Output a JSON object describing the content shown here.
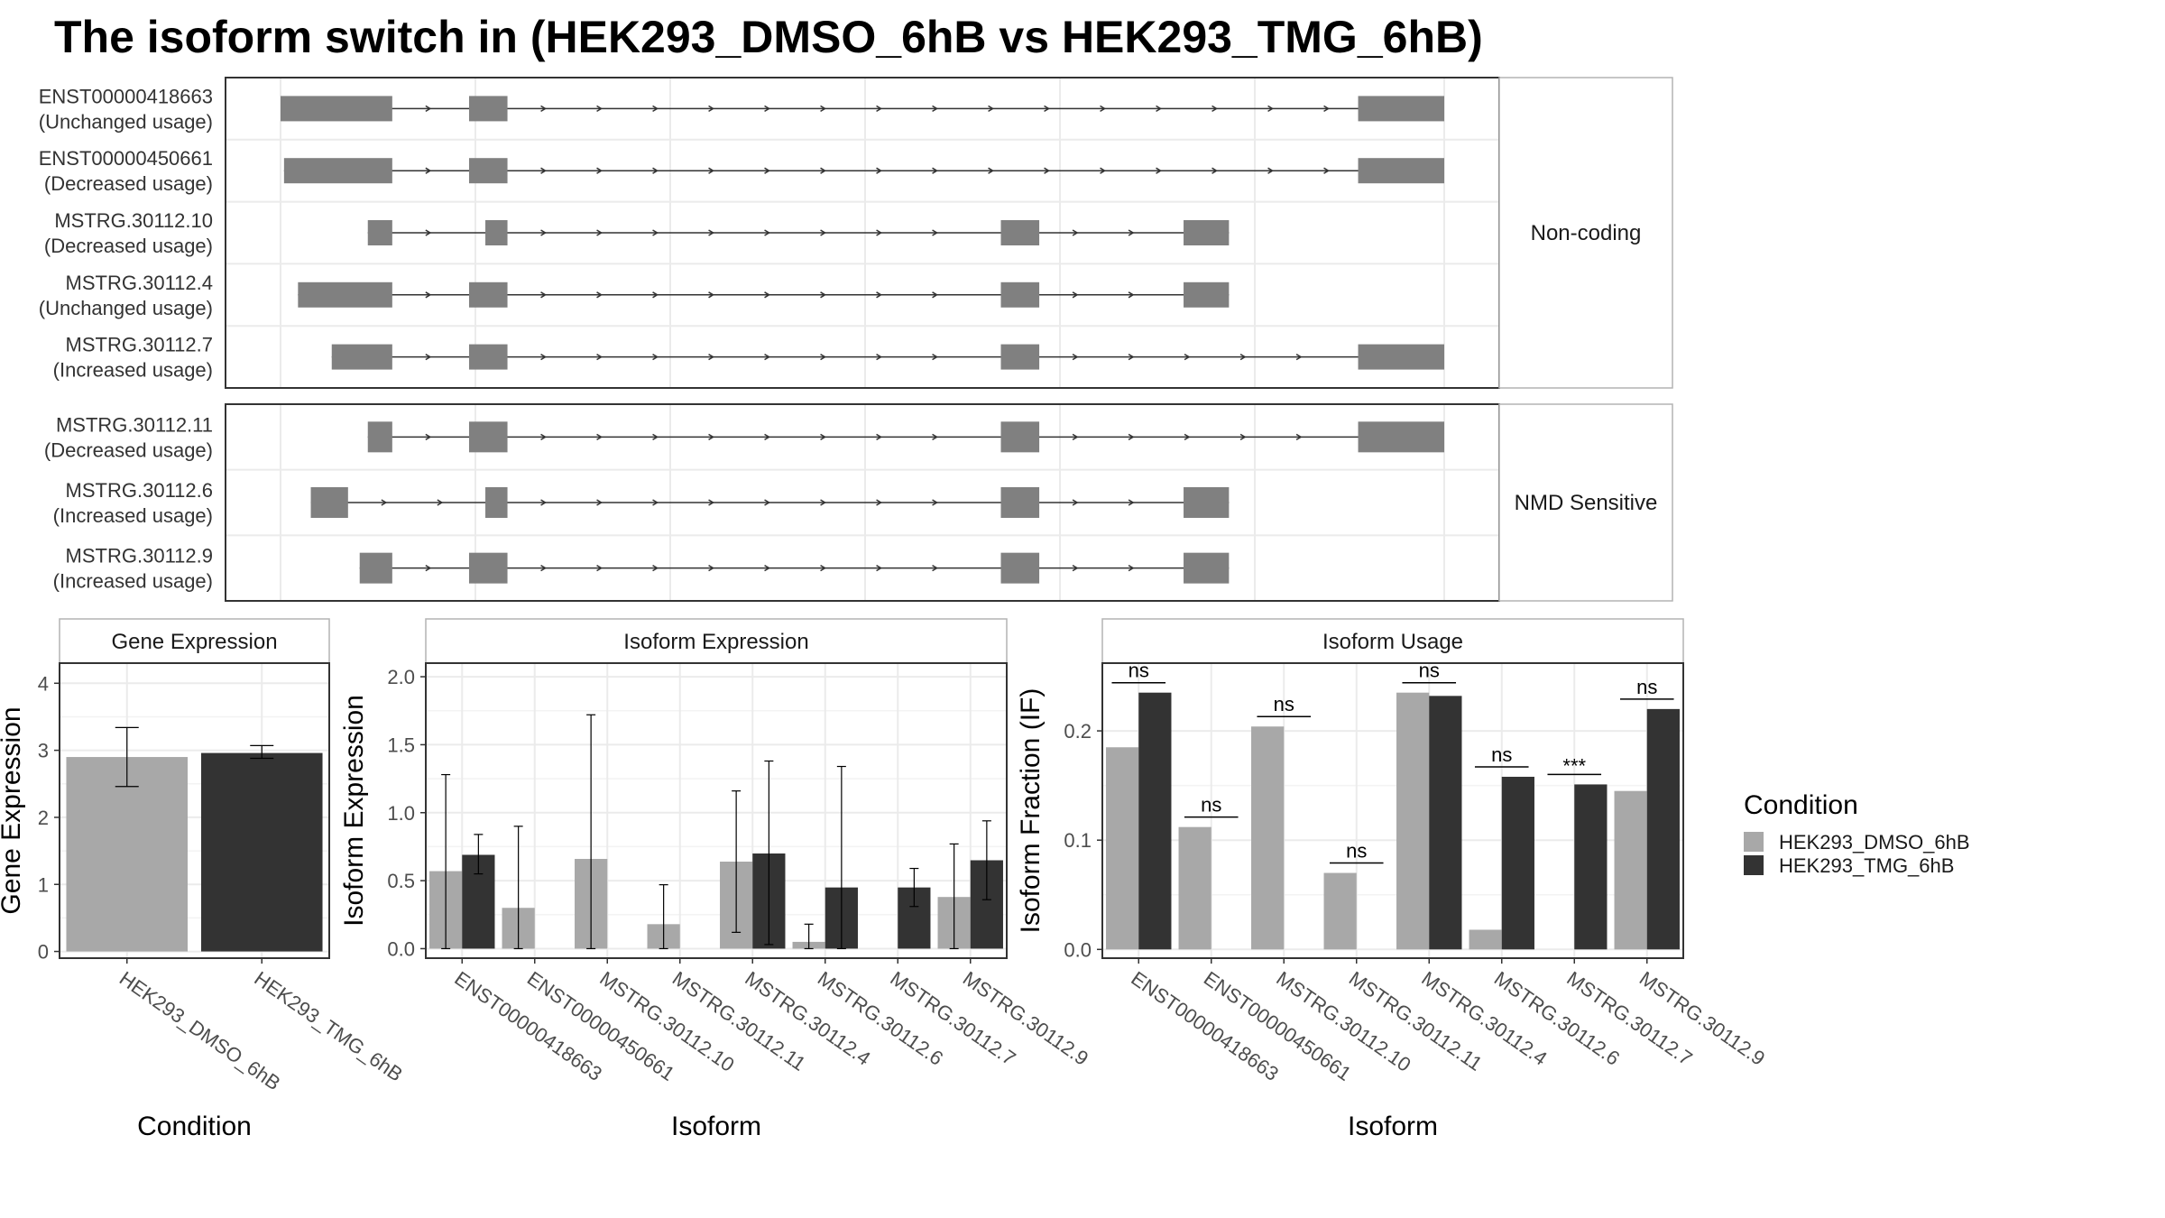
{
  "title": "The isoform switch in  (HEK293_DMSO_6hB vs HEK293_TMG_6hB)",
  "colors": {
    "dmso": "#a8a8a8",
    "tmg": "#333333",
    "exon": "#808080"
  },
  "transcripts": {
    "facets": [
      {
        "label": "Non-coding",
        "rows": [
          {
            "id": "ENST00000418663",
            "usage": "(Unchanged usage)",
            "exons": [
              [
                0.0,
                0.096
              ],
              [
                0.162,
                0.195
              ],
              [
                0.926,
                1.0
              ]
            ]
          },
          {
            "id": "ENST00000450661",
            "usage": "(Decreased usage)",
            "exons": [
              [
                0.003,
                0.096
              ],
              [
                0.162,
                0.195
              ],
              [
                0.926,
                1.0
              ]
            ]
          },
          {
            "id": "MSTRG.30112.10",
            "usage": "(Decreased usage)",
            "exons": [
              [
                0.075,
                0.096
              ],
              [
                0.176,
                0.195
              ],
              [
                0.619,
                0.652
              ],
              [
                0.776,
                0.815
              ]
            ]
          },
          {
            "id": "MSTRG.30112.4",
            "usage": "(Unchanged usage)",
            "exons": [
              [
                0.015,
                0.096
              ],
              [
                0.162,
                0.195
              ],
              [
                0.619,
                0.652
              ],
              [
                0.776,
                0.815
              ]
            ]
          },
          {
            "id": "MSTRG.30112.7",
            "usage": "(Increased usage)",
            "exons": [
              [
                0.044,
                0.096
              ],
              [
                0.162,
                0.195
              ],
              [
                0.619,
                0.652
              ],
              [
                0.926,
                1.0
              ]
            ]
          }
        ]
      },
      {
        "label": "NMD Sensitive",
        "rows": [
          {
            "id": "MSTRG.30112.11",
            "usage": "(Decreased usage)",
            "exons": [
              [
                0.075,
                0.096
              ],
              [
                0.162,
                0.195
              ],
              [
                0.619,
                0.652
              ],
              [
                0.926,
                1.0
              ]
            ]
          },
          {
            "id": "MSTRG.30112.6",
            "usage": "(Increased usage)",
            "exons": [
              [
                0.026,
                0.058
              ],
              [
                0.176,
                0.195
              ],
              [
                0.619,
                0.652
              ],
              [
                0.776,
                0.815
              ]
            ]
          },
          {
            "id": "MSTRG.30112.9",
            "usage": "(Increased usage)",
            "exons": [
              [
                0.068,
                0.096
              ],
              [
                0.162,
                0.195
              ],
              [
                0.619,
                0.652
              ],
              [
                0.776,
                0.815
              ]
            ]
          }
        ]
      }
    ]
  },
  "legend": {
    "title": "Condition",
    "items": [
      "HEK293_DMSO_6hB",
      "HEK293_TMG_6hB"
    ]
  },
  "chart_data": [
    {
      "type": "bar",
      "title": "Gene Expression",
      "xlabel": "Condition",
      "ylabel": "Gene Expression",
      "ylim": [
        -0.1,
        4.3
      ],
      "yticks": [
        "0",
        "1",
        "2",
        "3",
        "4"
      ],
      "categories": [
        "HEK293_DMSO_6hB",
        "HEK293_TMG_6hB"
      ],
      "values": [
        2.9,
        2.96
      ],
      "error_low": [
        2.46,
        2.88
      ],
      "error_high": [
        3.34,
        3.07
      ]
    },
    {
      "type": "bar",
      "title": "Isoform Expression",
      "xlabel": "Isoform",
      "ylabel": "Isoform Expression",
      "ylim": [
        -0.07,
        2.1
      ],
      "yticks": [
        "0.0",
        "0.5",
        "1.0",
        "1.5",
        "2.0"
      ],
      "categories": [
        "ENST00000418663",
        "ENST00000450661",
        "MSTRG.30112.10",
        "MSTRG.30112.11",
        "MSTRG.30112.4",
        "MSTRG.30112.6",
        "MSTRG.30112.7",
        "MSTRG.30112.9"
      ],
      "series": [
        {
          "name": "HEK293_DMSO_6hB",
          "values": [
            0.57,
            0.3,
            0.66,
            0.18,
            0.64,
            0.05,
            0.0,
            0.38
          ],
          "error_low": [
            0.0,
            0.0,
            0.0,
            0.0,
            0.12,
            0.0,
            0.0,
            0.0
          ],
          "error_high": [
            1.28,
            0.9,
            1.72,
            0.47,
            1.16,
            0.18,
            0.0,
            0.77
          ]
        },
        {
          "name": "HEK293_TMG_6hB",
          "values": [
            0.69,
            0.0,
            0.0,
            0.0,
            0.7,
            0.45,
            0.45,
            0.65
          ],
          "error_low": [
            0.55,
            0.0,
            0.0,
            0.0,
            0.03,
            0.0,
            0.31,
            0.36
          ],
          "error_high": [
            0.84,
            0.0,
            0.0,
            0.0,
            1.38,
            1.34,
            0.59,
            0.94
          ]
        }
      ]
    },
    {
      "type": "bar",
      "title": "Isoform Usage",
      "xlabel": "Isoform",
      "ylabel": "Isoform Fraction (IF)",
      "ylim": [
        -0.008,
        0.262
      ],
      "yticks": [
        "0.0",
        "0.1",
        "0.2"
      ],
      "categories": [
        "ENST00000418663",
        "ENST00000450661",
        "MSTRG.30112.10",
        "MSTRG.30112.11",
        "MSTRG.30112.4",
        "MSTRG.30112.6",
        "MSTRG.30112.7",
        "MSTRG.30112.9"
      ],
      "series": [
        {
          "name": "HEK293_DMSO_6hB",
          "values": [
            0.185,
            0.112,
            0.204,
            0.07,
            0.235,
            0.018,
            0.0,
            0.145
          ]
        },
        {
          "name": "HEK293_TMG_6hB",
          "values": [
            0.235,
            0.0,
            0.0,
            0.0,
            0.232,
            0.158,
            0.151,
            0.22
          ]
        }
      ],
      "significance": [
        "ns",
        "ns",
        "ns",
        "ns",
        "ns",
        "ns",
        "***",
        "ns"
      ]
    }
  ]
}
